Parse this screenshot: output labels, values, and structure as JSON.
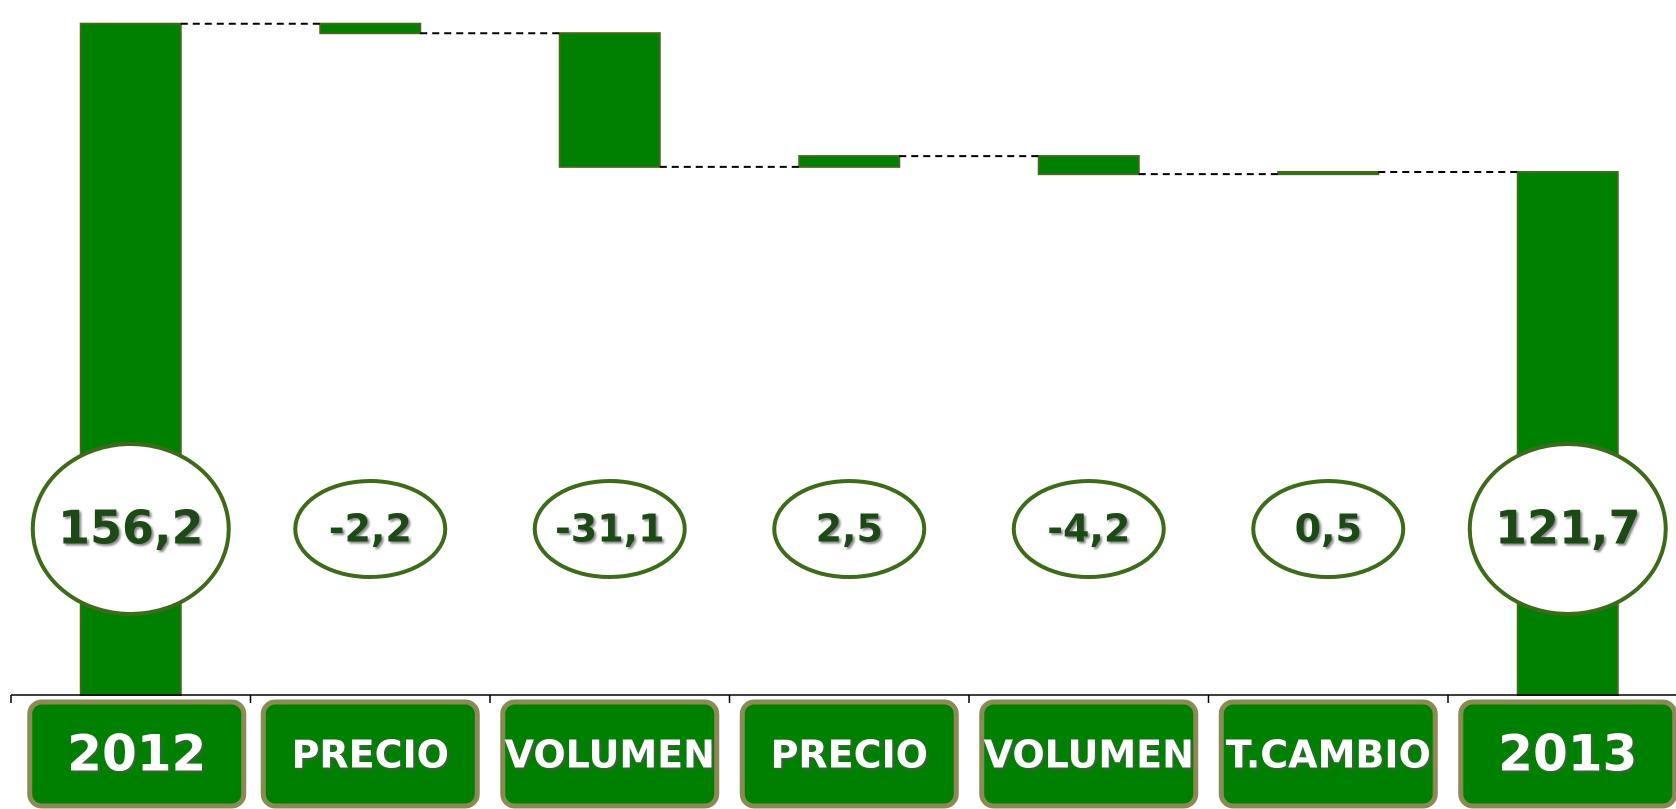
{
  "chart_data": {
    "type": "waterfall",
    "categories": [
      "2012",
      "PRECIO",
      "VOLUMEN",
      "PRECIO",
      "VOLUMEN",
      "T.CAMBIO",
      "2013"
    ],
    "values": [
      156.2,
      -2.2,
      -31.1,
      2.5,
      -4.2,
      0.5,
      121.7
    ],
    "value_labels": [
      "156,2",
      "-2,2",
      "-31,1",
      "2,5",
      "-4,2",
      "0,5",
      "121,7"
    ],
    "color": "#008000",
    "ylim": [
      0,
      158
    ]
  }
}
